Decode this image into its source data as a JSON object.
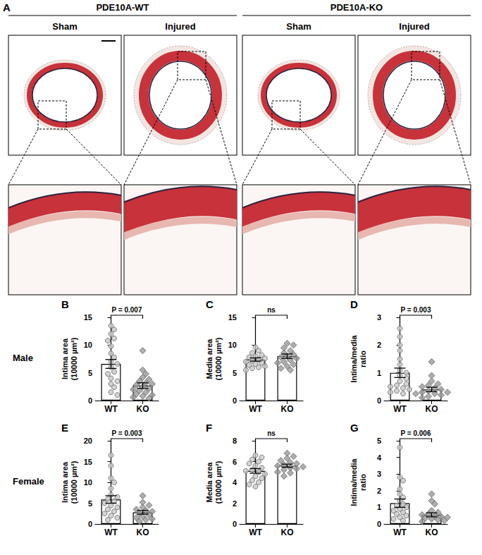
{
  "panel_a": {
    "label": "A",
    "groups": [
      {
        "name": "PDE10A-WT",
        "conditions": [
          "Sham",
          "Injured"
        ]
      },
      {
        "name": "PDE10A-KO",
        "conditions": [
          "Sham",
          "Injured"
        ]
      }
    ]
  },
  "rows": [
    {
      "label": "Male"
    },
    {
      "label": "Female"
    }
  ],
  "chart_data": [
    {
      "type": "bar",
      "title": "B",
      "categories": [
        "WT",
        "KO"
      ],
      "values": [
        6.6,
        2.7
      ],
      "errors": [
        0.8,
        0.5
      ],
      "color": "#ffffff",
      "points": [
        {
          "name": "WT",
          "marker": "circle",
          "color": "#c8c8c8",
          "values": [
            13.5,
            12.8,
            12.0,
            11.2,
            10.8,
            9.8,
            8.5,
            7.8,
            7.0,
            6.6,
            6.0,
            5.2,
            4.8,
            4.0,
            3.5,
            3.0,
            2.4,
            1.5,
            1.0
          ]
        },
        {
          "name": "KO",
          "marker": "diamond",
          "color": "#9a9a9a",
          "values": [
            9.0,
            5.5,
            4.8,
            4.2,
            3.8,
            3.5,
            3.2,
            3.0,
            2.8,
            2.5,
            2.2,
            2.0,
            1.8,
            1.5,
            1.2,
            1.0,
            0.8,
            0.6,
            0.4
          ]
        }
      ],
      "ylabel": "Intima area\n(10000 µm²)",
      "ylim": [
        0,
        15
      ],
      "yticks": [
        0,
        5,
        10,
        15
      ],
      "annotation": "P = 0.007",
      "grid": false
    },
    {
      "type": "bar",
      "title": "C",
      "categories": [
        "WT",
        "KO"
      ],
      "values": [
        7.4,
        8.0
      ],
      "errors": [
        0.3,
        0.4
      ],
      "color": "#ffffff",
      "points": [
        {
          "name": "WT",
          "marker": "circle",
          "color": "#c8c8c8",
          "values": [
            9.6,
            9.0,
            8.6,
            8.2,
            8.0,
            7.8,
            7.6,
            7.4,
            7.2,
            7.0,
            6.8,
            6.6,
            6.4,
            6.2,
            6.0,
            5.8,
            5.5
          ]
        },
        {
          "name": "KO",
          "marker": "diamond",
          "color": "#9a9a9a",
          "values": [
            10.3,
            10.0,
            9.5,
            9.0,
            8.6,
            8.3,
            8.0,
            7.8,
            7.6,
            7.3,
            7.0,
            6.8,
            6.5,
            6.2,
            5.8,
            5.5
          ]
        }
      ],
      "ylabel": "Media area\n(10000 µm²)",
      "ylim": [
        0,
        15
      ],
      "yticks": [
        0,
        5,
        10,
        15
      ],
      "annotation": "ns",
      "grid": false
    },
    {
      "type": "bar",
      "title": "D",
      "categories": [
        "WT",
        "KO"
      ],
      "values": [
        1.0,
        0.4
      ],
      "errors": [
        0.17,
        0.08
      ],
      "color": "#ffffff",
      "points": [
        {
          "name": "WT",
          "marker": "circle",
          "color": "#c8c8c8",
          "values": [
            2.6,
            2.3,
            2.0,
            1.8,
            1.5,
            1.3,
            1.1,
            1.0,
            0.9,
            0.8,
            0.7,
            0.6,
            0.55,
            0.5,
            0.45,
            0.4,
            0.35,
            0.3,
            0.25
          ]
        },
        {
          "name": "KO",
          "marker": "diamond",
          "color": "#9a9a9a",
          "values": [
            1.4,
            0.9,
            0.7,
            0.6,
            0.55,
            0.5,
            0.45,
            0.4,
            0.35,
            0.3,
            0.3,
            0.25,
            0.25,
            0.2,
            0.2,
            0.15,
            0.15,
            0.1,
            0.1
          ]
        }
      ],
      "ylabel": "Intima/media\nratio",
      "ylim": [
        0,
        3
      ],
      "yticks": [
        0,
        1,
        2,
        3
      ],
      "annotation": "P = 0.003",
      "grid": false
    },
    {
      "type": "bar",
      "title": "E",
      "categories": [
        "WT",
        "KO"
      ],
      "values": [
        5.9,
        2.8
      ],
      "errors": [
        0.9,
        0.45
      ],
      "color": "#ffffff",
      "points": [
        {
          "name": "WT",
          "marker": "circle",
          "color": "#c8c8c8",
          "values": [
            16.5,
            14.0,
            11.0,
            10.0,
            8.5,
            7.0,
            6.5,
            6.0,
            5.5,
            5.0,
            4.5,
            4.0,
            3.5,
            3.0,
            2.5,
            2.0,
            1.5,
            1.0
          ]
        },
        {
          "name": "KO",
          "marker": "diamond",
          "color": "#9a9a9a",
          "values": [
            6.8,
            5.2,
            4.5,
            4.0,
            3.5,
            3.2,
            3.0,
            2.6,
            2.2,
            1.8,
            1.5,
            1.2,
            1.0,
            0.6
          ]
        }
      ],
      "ylabel": "Intima area\n(10000 µm²)",
      "ylim": [
        0,
        20
      ],
      "yticks": [
        0,
        5,
        10,
        15,
        20
      ],
      "annotation": "P = 0.003",
      "grid": false
    },
    {
      "type": "bar",
      "title": "F",
      "categories": [
        "WT",
        "KO"
      ],
      "values": [
        5.1,
        5.6
      ],
      "errors": [
        0.22,
        0.15
      ],
      "color": "#ffffff",
      "points": [
        {
          "name": "WT",
          "marker": "circle",
          "color": "#c8c8c8",
          "values": [
            6.6,
            6.4,
            6.2,
            6.0,
            5.8,
            5.6,
            5.4,
            5.2,
            5.1,
            5.0,
            4.8,
            4.6,
            4.4,
            4.2,
            4.0,
            3.8,
            3.6
          ]
        },
        {
          "name": "KO",
          "marker": "diamond",
          "color": "#9a9a9a",
          "values": [
            6.8,
            6.5,
            6.3,
            6.1,
            5.9,
            5.8,
            5.7,
            5.6,
            5.5,
            5.4,
            5.3,
            5.2,
            5.0,
            4.9,
            4.6
          ]
        }
      ],
      "ylabel": "Media area\n(10000 µm²)",
      "ylim": [
        0,
        8
      ],
      "yticks": [
        0,
        2,
        4,
        6,
        8
      ],
      "annotation": "ns",
      "grid": false
    },
    {
      "type": "bar",
      "title": "G",
      "categories": [
        "WT",
        "KO"
      ],
      "values": [
        1.25,
        0.55
      ],
      "errors": [
        0.25,
        0.12
      ],
      "color": "#ffffff",
      "points": [
        {
          "name": "WT",
          "marker": "circle",
          "color": "#c8c8c8",
          "values": [
            4.6,
            2.8,
            2.6,
            2.1,
            1.8,
            1.6,
            1.4,
            1.2,
            1.1,
            1.0,
            0.9,
            0.8,
            0.7,
            0.6,
            0.5,
            0.4,
            0.3,
            0.2
          ]
        },
        {
          "name": "KO",
          "marker": "diamond",
          "color": "#9a9a9a",
          "values": [
            1.8,
            1.4,
            1.2,
            0.8,
            0.7,
            0.6,
            0.55,
            0.5,
            0.45,
            0.4,
            0.35,
            0.3,
            0.25,
            0.2,
            0.15
          ]
        }
      ],
      "ylabel": "Intima/media\nratio",
      "ylim": [
        0,
        5
      ],
      "yticks": [
        0,
        1,
        2,
        3,
        4,
        5
      ],
      "annotation": "P = 0.006",
      "grid": false
    }
  ]
}
